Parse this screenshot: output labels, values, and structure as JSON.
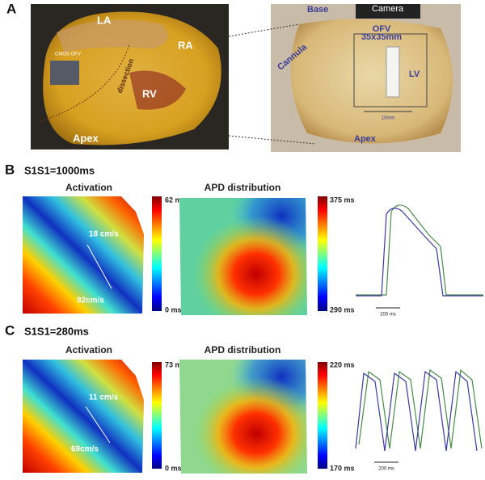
{
  "panel_a": {
    "label": "A",
    "left_photo": {
      "labels": [
        "LA",
        "RA",
        "RV",
        "Apex",
        "CMOS OFV",
        "dissection"
      ]
    },
    "right_photo": {
      "labels": [
        "Base",
        "Camera",
        "OFV",
        "35x35mm",
        "LV",
        "Cannula",
        "Apex",
        "10mm"
      ]
    }
  },
  "panel_b": {
    "label": "B",
    "condition": "S1S1=1000ms",
    "activation": {
      "title": "Activation",
      "scale_max": "62 ms",
      "scale_min": "0 ms",
      "velocities": [
        "18 cm/s",
        "92cm/s"
      ]
    },
    "apd": {
      "title": "APD distribution",
      "scale_max": "375 ms",
      "scale_min": "290 ms"
    },
    "trace": {
      "scale_bar": "200 ms"
    }
  },
  "panel_c": {
    "label": "C",
    "condition": "S1S1=280ms",
    "activation": {
      "title": "Activation",
      "scale_max": "73 ms",
      "scale_min": "0 ms",
      "velocities": [
        "11 cm/s",
        "69cm/s"
      ]
    },
    "apd": {
      "title": "APD distribution",
      "scale_max": "220 ms",
      "scale_min": "170 ms"
    },
    "trace": {
      "scale_bar": "200 ms"
    }
  }
}
